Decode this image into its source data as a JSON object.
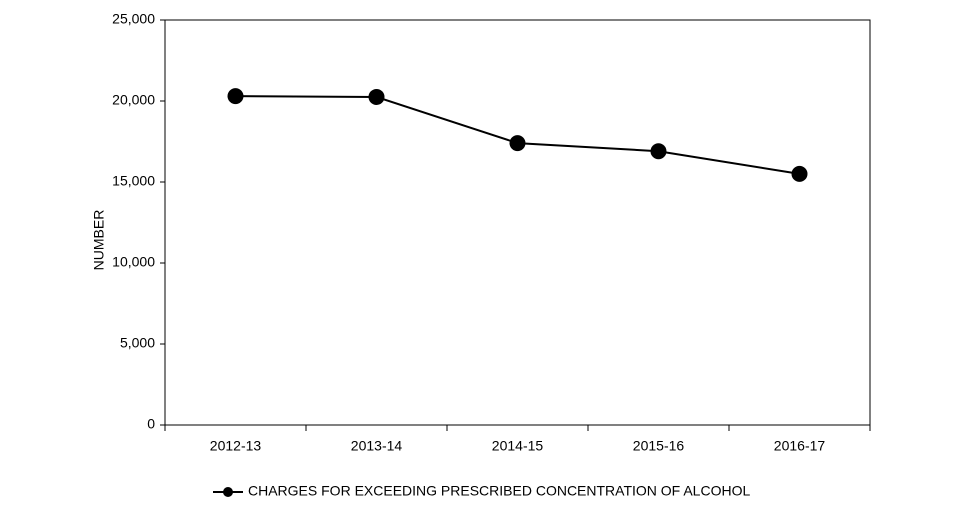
{
  "chart_data": {
    "type": "line",
    "y_label": "NUMBER",
    "categories": [
      "2012-13",
      "2013-14",
      "2014-15",
      "2015-16",
      "2016-17"
    ],
    "series": [
      {
        "name": "CHARGES FOR EXCEEDING PRESCRIBED CONCENTRATION OF ALCOHOL",
        "color": "#000000",
        "values": [
          20300,
          20250,
          17400,
          16900,
          15500
        ]
      }
    ],
    "ylim": [
      0,
      25000
    ],
    "yticks": [
      0,
      {
        "value": 5000,
        "label": "5,000"
      },
      {
        "value": 10000,
        "label": "10,000"
      },
      {
        "value": 15000,
        "label": "15,000"
      },
      {
        "value": 20000,
        "label": "20,000"
      },
      {
        "value": 25000,
        "label": "25,000"
      }
    ],
    "grid": false,
    "legend": "bottom"
  }
}
